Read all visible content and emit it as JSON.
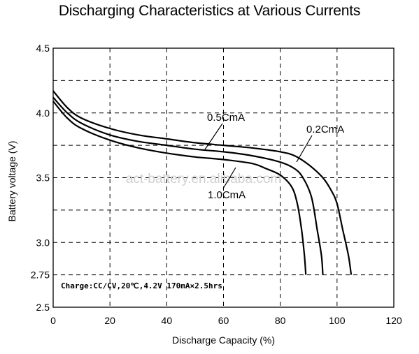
{
  "chart_data": {
    "type": "line",
    "title": "Discharging Characteristics at Various Currents",
    "xlabel": "Discharge Capacity (%)",
    "ylabel": "Battery voltage (V)",
    "xlim": [
      0,
      120
    ],
    "ylim": [
      2.5,
      4.5
    ],
    "x_ticks": [
      0,
      20,
      40,
      60,
      80,
      100,
      120
    ],
    "y_ticks": [
      2.5,
      2.75,
      3.0,
      3.5,
      4.0,
      4.5
    ],
    "y_tick_labels": [
      "2.5",
      "2.75",
      "3.0",
      "3.5",
      "4.0",
      "4.5"
    ],
    "grid": "dashed",
    "annotation": "Charge:CC/CV,20℃,4.2V 170mA×2.5hrs",
    "watermark": "act-battery.en.alibaba.com",
    "series": [
      {
        "name": "0.2CmA",
        "points": [
          [
            0,
            4.17
          ],
          [
            5,
            4.04
          ],
          [
            10,
            3.96
          ],
          [
            20,
            3.88
          ],
          [
            30,
            3.83
          ],
          [
            40,
            3.8
          ],
          [
            50,
            3.77
          ],
          [
            60,
            3.75
          ],
          [
            70,
            3.73
          ],
          [
            80,
            3.7
          ],
          [
            85,
            3.67
          ],
          [
            90,
            3.6
          ],
          [
            95,
            3.5
          ],
          [
            98,
            3.4
          ],
          [
            100,
            3.3
          ],
          [
            102,
            3.1
          ],
          [
            104,
            2.9
          ],
          [
            105,
            2.75
          ]
        ]
      },
      {
        "name": "0.5CmA",
        "points": [
          [
            0,
            4.12
          ],
          [
            5,
            4.0
          ],
          [
            10,
            3.92
          ],
          [
            20,
            3.83
          ],
          [
            30,
            3.78
          ],
          [
            40,
            3.75
          ],
          [
            50,
            3.72
          ],
          [
            60,
            3.7
          ],
          [
            70,
            3.67
          ],
          [
            80,
            3.62
          ],
          [
            85,
            3.57
          ],
          [
            88,
            3.5
          ],
          [
            91,
            3.35
          ],
          [
            93,
            3.1
          ],
          [
            94.5,
            2.9
          ],
          [
            95,
            2.75
          ]
        ]
      },
      {
        "name": "1.0CmA",
        "points": [
          [
            0,
            4.09
          ],
          [
            5,
            3.96
          ],
          [
            10,
            3.88
          ],
          [
            20,
            3.79
          ],
          [
            30,
            3.73
          ],
          [
            40,
            3.69
          ],
          [
            50,
            3.66
          ],
          [
            60,
            3.64
          ],
          [
            70,
            3.61
          ],
          [
            75,
            3.57
          ],
          [
            80,
            3.52
          ],
          [
            84,
            3.43
          ],
          [
            86,
            3.3
          ],
          [
            87.5,
            3.1
          ],
          [
            88.5,
            2.9
          ],
          [
            89,
            2.75
          ]
        ]
      }
    ]
  }
}
